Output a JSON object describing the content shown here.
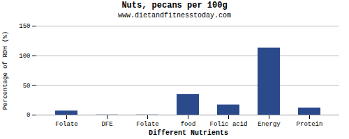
{
  "chart_data": {
    "type": "bar",
    "title": "Nuts, pecans per 100g",
    "subtitle": "www.dietandfitnesstoday.com",
    "xlabel": "Different Nutrients",
    "ylabel": "Percentage of RDH (%)",
    "categories": [
      "Folate",
      "DFE",
      "Folate",
      "food",
      "Folic acid",
      "Energy",
      "Protein"
    ],
    "values": [
      7,
      0.3,
      0.3,
      35,
      17,
      113,
      12
    ],
    "color": "#2b4a8b",
    "ylim": [
      0,
      150
    ],
    "yticks": [
      0,
      50,
      100,
      150
    ],
    "grid": true
  }
}
